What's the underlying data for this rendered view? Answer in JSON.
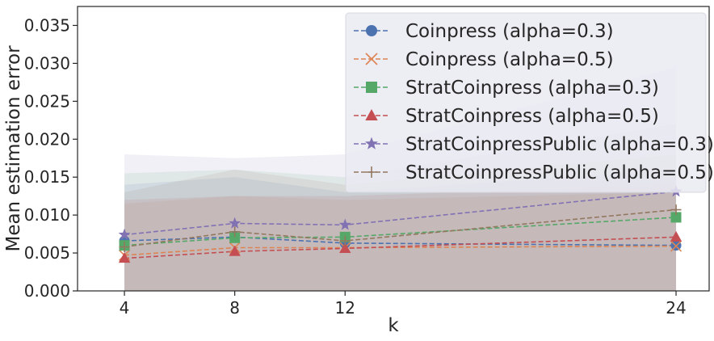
{
  "chart_data": {
    "type": "line",
    "xlabel": "k",
    "ylabel": "Mean estimation error",
    "x": [
      4,
      8,
      12,
      24
    ],
    "xticks": [
      "4",
      "8",
      "12",
      "24"
    ],
    "xlim": [
      2.3,
      25.2
    ],
    "ylim": [
      0,
      0.0375
    ],
    "yticks": [
      "0.000",
      "0.005",
      "0.010",
      "0.015",
      "0.020",
      "0.025",
      "0.030",
      "0.035"
    ],
    "ytick_values": [
      0,
      0.005,
      0.01,
      0.015,
      0.02,
      0.025,
      0.03,
      0.035
    ],
    "grid": false,
    "legend_position": "top-right",
    "series": [
      {
        "name": "Coinpress (alpha=0.3)",
        "color": "#4c72b0",
        "marker": "circle",
        "values": [
          0.0066,
          0.0071,
          0.0063,
          0.006
        ],
        "band_upper": [
          0.014,
          0.015,
          0.013,
          0.016
        ]
      },
      {
        "name": "Coinpress (alpha=0.5)",
        "color": "#dd8452",
        "marker": "x",
        "values": [
          0.0047,
          0.0057,
          0.0057,
          0.0059
        ],
        "band_upper": [
          0.0115,
          0.0125,
          0.012,
          0.013
        ]
      },
      {
        "name": "StratCoinpress (alpha=0.3)",
        "color": "#55a868",
        "marker": "square",
        "values": [
          0.006,
          0.007,
          0.0071,
          0.0097
        ],
        "band_upper": [
          0.0155,
          0.016,
          0.015,
          0.022
        ]
      },
      {
        "name": "StratCoinpress (alpha=0.5)",
        "color": "#c44e52",
        "marker": "triangle",
        "values": [
          0.0043,
          0.0052,
          0.0056,
          0.0071
        ],
        "band_upper": [
          0.012,
          0.0125,
          0.0125,
          0.014
        ]
      },
      {
        "name": "StratCoinpressPublic (alpha=0.3)",
        "color": "#8172b3",
        "marker": "star",
        "values": [
          0.0074,
          0.0089,
          0.0087,
          0.0131
        ],
        "band_upper": [
          0.018,
          0.0175,
          0.018,
          0.0295
        ]
      },
      {
        "name": "StratCoinpressPublic (alpha=0.5)",
        "color": "#937860",
        "marker": "plus",
        "values": [
          0.0058,
          0.0078,
          0.0066,
          0.0107
        ],
        "band_upper": [
          0.013,
          0.016,
          0.014,
          0.018
        ]
      }
    ]
  }
}
